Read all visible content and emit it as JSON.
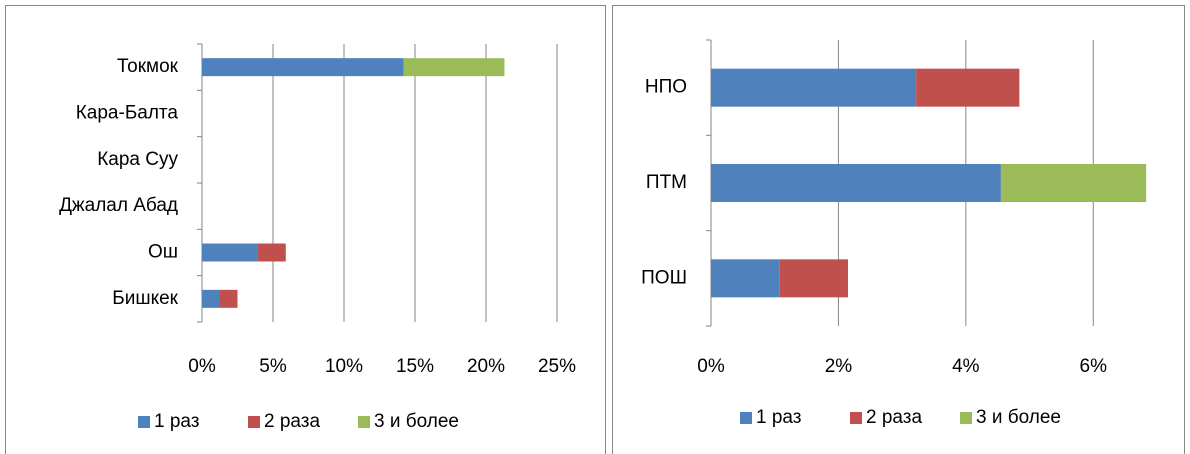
{
  "chart_data": [
    {
      "type": "stacked_barh",
      "categories": [
        "Токмок",
        "Кара-Балта",
        "Кара Суу",
        "Джалал Абад",
        "Ош",
        "Бишкек"
      ],
      "series": [
        {
          "name": "1 раз",
          "color": "#4f81bd",
          "values": [
            14.2,
            0,
            0,
            0,
            3.9,
            1.2
          ]
        },
        {
          "name": "2 раза",
          "color": "#c0504d",
          "values": [
            0,
            0,
            0,
            0,
            2.0,
            1.3
          ]
        },
        {
          "name": "3 и более",
          "color": "#9bbb59",
          "values": [
            7.1,
            0,
            0,
            0,
            0,
            0
          ]
        }
      ],
      "xlim": [
        0,
        25
      ],
      "xticks": [
        {
          "value": 0,
          "label": "0%"
        },
        {
          "value": 5,
          "label": "5%"
        },
        {
          "value": 10,
          "label": "10%"
        },
        {
          "value": 15,
          "label": "15%"
        },
        {
          "value": 20,
          "label": "20%"
        },
        {
          "value": 25,
          "label": "25%"
        }
      ],
      "grid": true,
      "legend": "bottom"
    },
    {
      "type": "stacked_barh",
      "categories": [
        "НПО",
        "ПТМ",
        "ПОШ"
      ],
      "series": [
        {
          "name": "1 раз",
          "color": "#4f81bd",
          "values": [
            3.22,
            4.55,
            1.08
          ]
        },
        {
          "name": "2 раза",
          "color": "#c0504d",
          "values": [
            1.62,
            0,
            1.07
          ]
        },
        {
          "name": "3 и более",
          "color": "#9bbb59",
          "values": [
            0,
            2.28,
            0
          ]
        }
      ],
      "xlim": [
        0,
        7
      ],
      "xticks": [
        {
          "value": 0,
          "label": "0%"
        },
        {
          "value": 2,
          "label": "2%"
        },
        {
          "value": 4,
          "label": "4%"
        },
        {
          "value": 6,
          "label": "6%"
        }
      ],
      "grid": true,
      "legend": "bottom"
    }
  ]
}
